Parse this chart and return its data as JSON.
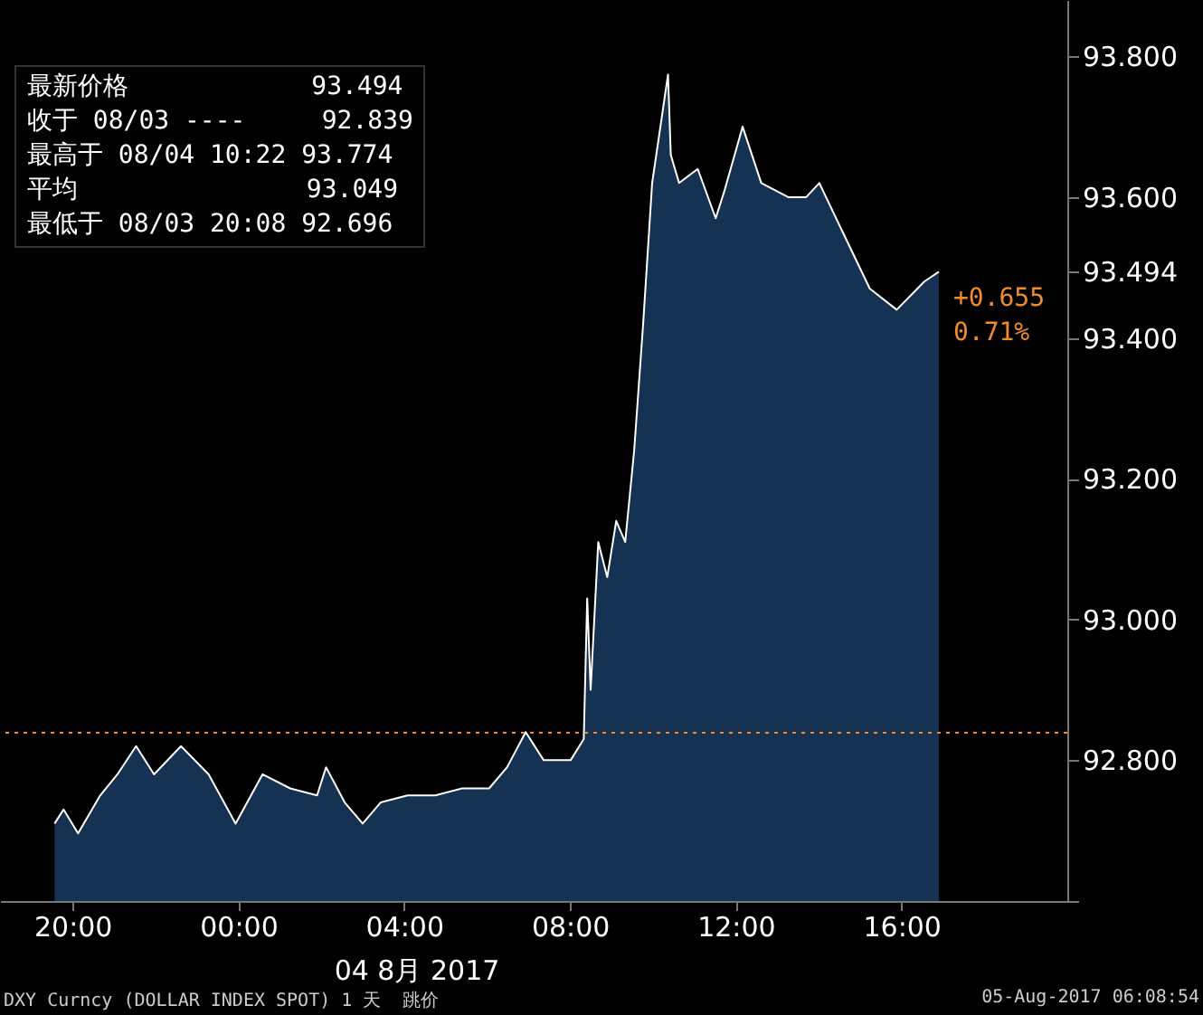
{
  "chart_data": {
    "type": "area",
    "xlabel": "04 8月 2017",
    "x": [
      "2017-08-03T19:34",
      "2017-08-03T19:47",
      "2017-08-03T20:08",
      "2017-08-03T20:40",
      "2017-08-03T21:05",
      "2017-08-03T21:32",
      "2017-08-03T21:58",
      "2017-08-03T22:37",
      "2017-08-03T23:17",
      "2017-08-03T23:56",
      "2017-08-04T00:35",
      "2017-08-04T01:15",
      "2017-08-04T01:54",
      "2017-08-04T02:07",
      "2017-08-04T02:34",
      "2017-08-04T03:00",
      "2017-08-04T03:26",
      "2017-08-04T04:05",
      "2017-08-04T04:45",
      "2017-08-04T05:24",
      "2017-08-04T06:03",
      "2017-08-04T06:29",
      "2017-08-04T06:56",
      "2017-08-04T07:22",
      "2017-08-04T08:01",
      "2017-08-04T08:20",
      "2017-08-04T08:25",
      "2017-08-04T08:30",
      "2017-08-04T08:41",
      "2017-08-04T08:54",
      "2017-08-04T09:07",
      "2017-08-04T09:20",
      "2017-08-04T09:33",
      "2017-08-04T09:46",
      "2017-08-04T09:59",
      "2017-08-04T10:22",
      "2017-08-04T10:26",
      "2017-08-04T10:38",
      "2017-08-04T11:05",
      "2017-08-04T11:31",
      "2017-08-04T11:44",
      "2017-08-04T12:10",
      "2017-08-04T12:37",
      "2017-08-04T13:16",
      "2017-08-04T13:42",
      "2017-08-04T14:01",
      "2017-08-04T14:35",
      "2017-08-04T15:14",
      "2017-08-04T15:53",
      "2017-08-04T16:33",
      "2017-08-04T16:54"
    ],
    "series": [
      {
        "color": "#ffffff",
        "values": [
          92.71,
          92.73,
          92.696,
          92.75,
          92.78,
          92.82,
          92.78,
          92.82,
          92.78,
          92.71,
          92.78,
          92.76,
          92.75,
          92.79,
          92.74,
          92.71,
          92.74,
          92.75,
          92.75,
          92.76,
          92.76,
          92.79,
          92.84,
          92.8,
          92.8,
          92.83,
          93.03,
          92.9,
          93.11,
          93.06,
          93.14,
          93.11,
          93.24,
          93.42,
          93.62,
          93.774,
          93.66,
          93.62,
          93.64,
          93.57,
          93.61,
          93.7,
          93.62,
          93.6,
          93.6,
          93.62,
          93.55,
          93.47,
          93.44,
          93.48,
          93.494
        ]
      }
    ],
    "xlim": [
      "2017-08-03T18:15",
      "2017-08-04T20:00"
    ],
    "xticks": [
      {
        "value": "2017-08-03T20:00",
        "label": "20:00"
      },
      {
        "value": "2017-08-04T00:00",
        "label": "00:00"
      },
      {
        "value": "2017-08-04T04:00",
        "label": "04:00"
      },
      {
        "value": "2017-08-04T08:00",
        "label": "08:00"
      },
      {
        "value": "2017-08-04T12:00",
        "label": "12:00"
      },
      {
        "value": "2017-08-04T16:00",
        "label": "16:00"
      }
    ],
    "ylim": [
      92.6,
      93.88
    ],
    "yticks": [
      {
        "value": 92.6,
        "label": null
      },
      {
        "value": 92.8,
        "label": "92.800"
      },
      {
        "value": 93.0,
        "label": "93.000"
      },
      {
        "value": 93.2,
        "label": "93.200"
      },
      {
        "value": 93.4,
        "label": "93.400"
      },
      {
        "value": 93.494,
        "label": "93.494"
      },
      {
        "value": 93.6,
        "label": "93.600"
      },
      {
        "value": 93.8,
        "label": "93.800"
      }
    ],
    "ref_lines": [
      {
        "axis": "y",
        "value": 92.839,
        "color": "#f28c28",
        "line_style": "dotted"
      }
    ],
    "annotations": [
      "最新价格            93.494",
      "收于 08/03 ----     92.839",
      "最高于 08/04 10:22 93.774",
      "平均               93.049",
      "最低于 08/03 20:08 92.696",
      {
        "text": "+0.655",
        "x": "2017-08-04T16:54",
        "y": 93.494
      },
      {
        "text": "0.71%",
        "x": "2017-08-04T16:54",
        "y": 93.494
      },
      "DXY Curncy (DOLLAR INDEX SPOT) 1 天  跳价",
      "05-Aug-2017 06:08:54"
    ]
  }
}
